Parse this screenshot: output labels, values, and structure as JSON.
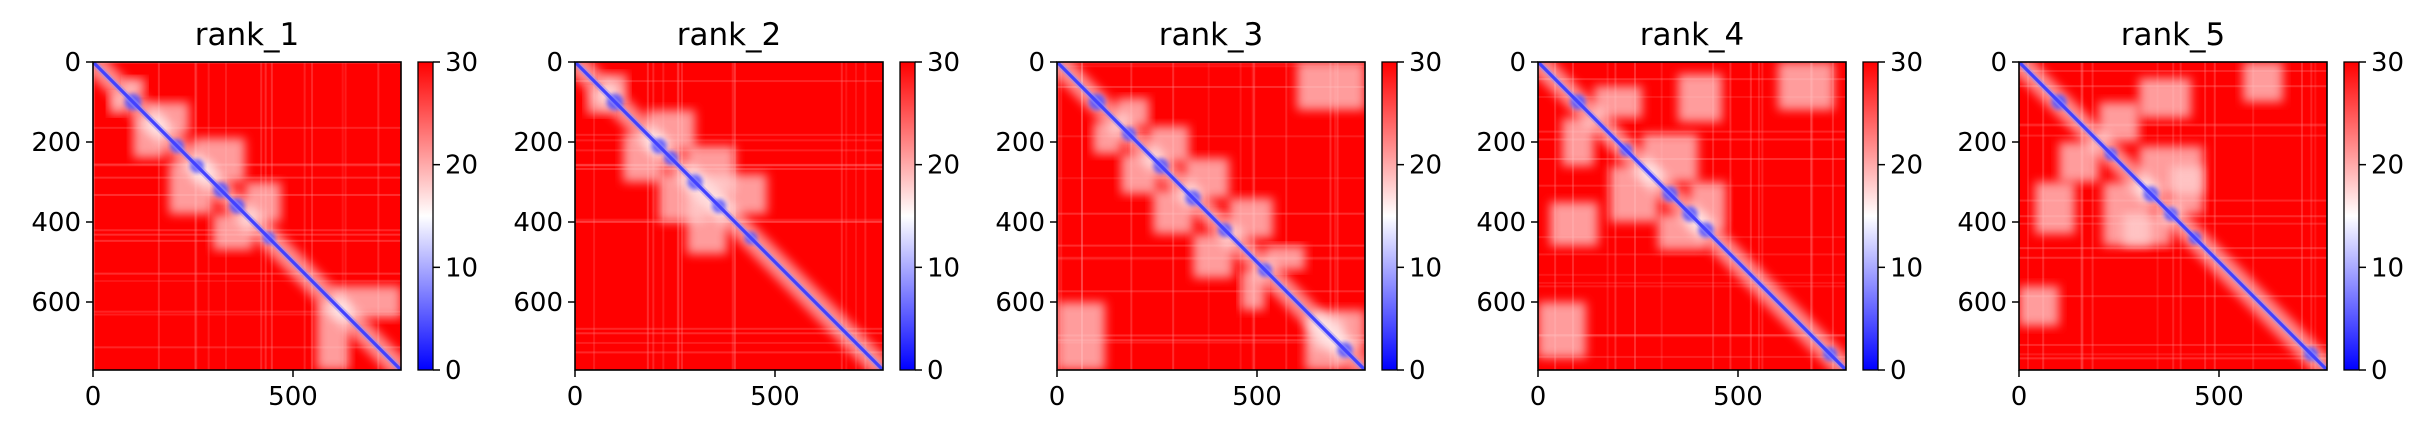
{
  "chart_data": [
    {
      "type": "heatmap",
      "title": "rank_1",
      "x_ticks": [
        0,
        500
      ],
      "y_ticks": [
        0,
        200,
        400,
        600
      ],
      "xlim": [
        0,
        770
      ],
      "ylim": [
        770,
        0
      ],
      "colorbar": {
        "range": [
          0,
          30
        ],
        "ticks": [
          0,
          10,
          20,
          30
        ],
        "colors": [
          "#0000ff",
          "#ffffff",
          "#ff0000"
        ]
      },
      "diagonal_blobs": [
        [
          100,
          0.9
        ],
        [
          210,
          0.7
        ],
        [
          260,
          0.7
        ],
        [
          320,
          0.8
        ],
        [
          360,
          0.8
        ],
        [
          440,
          0.6
        ]
      ],
      "offdiag_regions": [
        [
          80,
          130,
          40,
          80
        ],
        [
          140,
          240,
          100,
          180
        ],
        [
          250,
          380,
          190,
          300
        ],
        [
          380,
          470,
          300,
          400
        ],
        [
          600,
          770,
          560,
          640
        ]
      ]
    },
    {
      "type": "heatmap",
      "title": "rank_2",
      "x_ticks": [
        0,
        500
      ],
      "y_ticks": [
        0,
        200,
        400,
        600
      ],
      "xlim": [
        0,
        770
      ],
      "ylim": [
        770,
        0
      ],
      "colorbar": {
        "range": [
          0,
          30
        ],
        "ticks": [
          0,
          10,
          20,
          30
        ],
        "colors": [
          "#0000ff",
          "#ffffff",
          "#ff0000"
        ]
      },
      "diagonal_blobs": [
        [
          100,
          0.9
        ],
        [
          210,
          0.8
        ],
        [
          240,
          0.7
        ],
        [
          300,
          0.8
        ],
        [
          360,
          0.7
        ],
        [
          440,
          0.6
        ]
      ],
      "offdiag_regions": [
        [
          70,
          130,
          30,
          90
        ],
        [
          180,
          300,
          120,
          220
        ],
        [
          280,
          400,
          210,
          330
        ],
        [
          330,
          480,
          280,
          380
        ]
      ]
    },
    {
      "type": "heatmap",
      "title": "rank_3",
      "x_ticks": [
        0,
        500
      ],
      "y_ticks": [
        0,
        200,
        400,
        600
      ],
      "xlim": [
        0,
        770
      ],
      "ylim": [
        770,
        0
      ],
      "colorbar": {
        "range": [
          0,
          30
        ],
        "ticks": [
          0,
          10,
          20,
          30
        ],
        "colors": [
          "#0000ff",
          "#ffffff",
          "#ff0000"
        ]
      },
      "diagonal_blobs": [
        [
          100,
          0.9
        ],
        [
          180,
          0.7
        ],
        [
          260,
          0.8
        ],
        [
          340,
          0.8
        ],
        [
          420,
          0.7
        ],
        [
          520,
          0.7
        ],
        [
          720,
          0.8
        ]
      ],
      "offdiag_regions": [
        [
          150,
          230,
          90,
          160
        ],
        [
          230,
          330,
          160,
          250
        ],
        [
          320,
          430,
          240,
          340
        ],
        [
          430,
          540,
          340,
          440
        ],
        [
          520,
          620,
          460,
          520
        ],
        [
          600,
          770,
          0,
          120
        ],
        [
          640,
          770,
          620,
          720
        ]
      ]
    },
    {
      "type": "heatmap",
      "title": "rank_4",
      "x_ticks": [
        0,
        500
      ],
      "y_ticks": [
        0,
        200,
        400,
        600
      ],
      "xlim": [
        0,
        770
      ],
      "ylim": [
        770,
        0
      ],
      "colorbar": {
        "range": [
          0,
          30
        ],
        "ticks": [
          0,
          10,
          20,
          30
        ],
        "colors": [
          "#0000ff",
          "#ffffff",
          "#ff0000"
        ]
      },
      "diagonal_blobs": [
        [
          100,
          0.8
        ],
        [
          220,
          0.6
        ],
        [
          330,
          0.8
        ],
        [
          380,
          0.8
        ],
        [
          420,
          0.8
        ],
        [
          730,
          0.7
        ]
      ],
      "offdiag_regions": [
        [
          140,
          260,
          60,
          140
        ],
        [
          260,
          400,
          180,
          300
        ],
        [
          380,
          470,
          300,
          420
        ],
        [
          30,
          150,
          350,
          460
        ],
        [
          600,
          740,
          0,
          120
        ]
      ]
    },
    {
      "type": "heatmap",
      "title": "rank_5",
      "x_ticks": [
        0,
        500
      ],
      "y_ticks": [
        0,
        200,
        400,
        600
      ],
      "xlim": [
        0,
        770
      ],
      "ylim": [
        770,
        0
      ],
      "colorbar": {
        "range": [
          0,
          30
        ],
        "ticks": [
          0,
          10,
          20,
          30
        ],
        "colors": [
          "#0000ff",
          "#ffffff",
          "#ff0000"
        ]
      },
      "diagonal_blobs": [
        [
          100,
          0.8
        ],
        [
          230,
          0.6
        ],
        [
          330,
          0.8
        ],
        [
          380,
          0.7
        ],
        [
          440,
          0.6
        ],
        [
          730,
          0.7
        ]
      ],
      "offdiag_regions": [
        [
          200,
          300,
          100,
          200
        ],
        [
          300,
          460,
          210,
          330
        ],
        [
          380,
          460,
          260,
          380
        ],
        [
          40,
          140,
          300,
          430
        ],
        [
          560,
          660,
          0,
          100
        ]
      ]
    }
  ]
}
